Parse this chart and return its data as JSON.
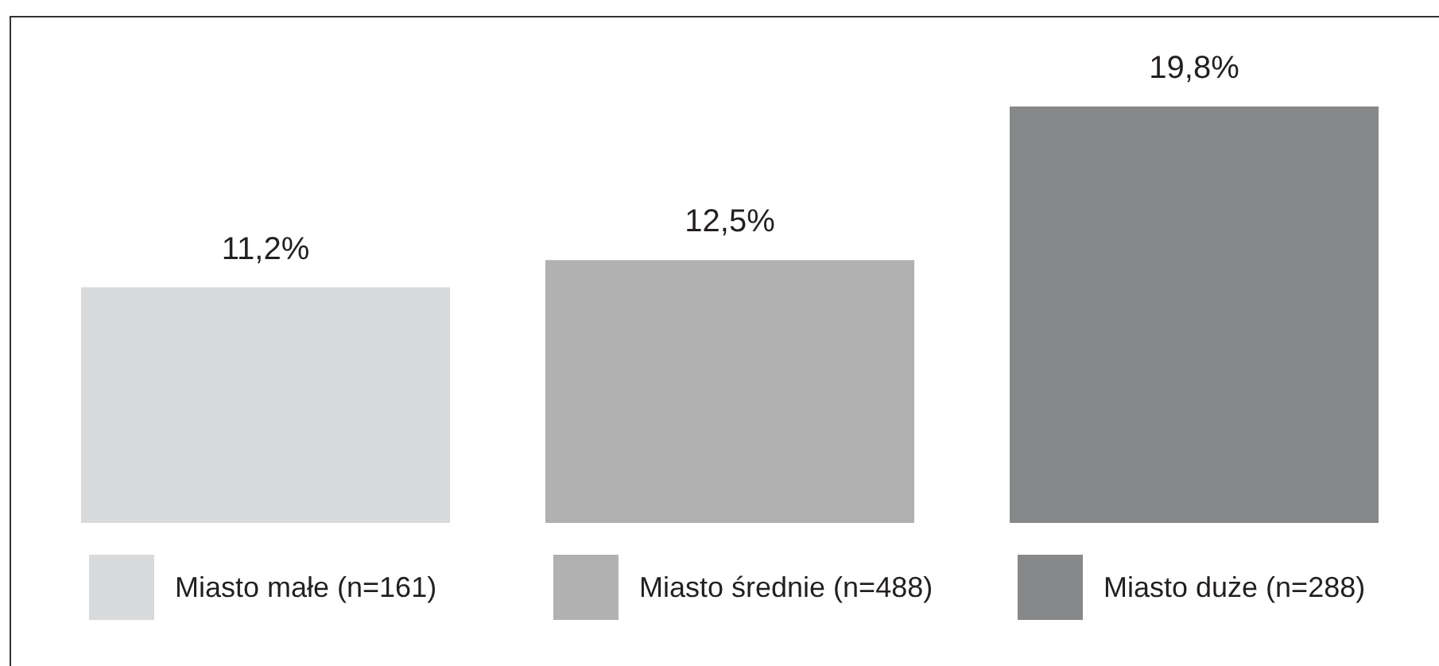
{
  "chart_data": {
    "type": "bar",
    "categories": [
      null
    ],
    "series": [
      {
        "name": "Miasto małe (n=161)",
        "color": "#d9dadb",
        "values": [
          11.2
        ],
        "value_labels": [
          "11,2%"
        ]
      },
      {
        "name": "Miasto średnie (n=488)",
        "color": "#b1b1b2",
        "values": [
          12.5
        ],
        "value_labels": [
          "12,5%"
        ]
      },
      {
        "name": "Miasto duże (n=288)",
        "color": "#87888a",
        "values": [
          19.8
        ],
        "value_labels": [
          "19,8%"
        ]
      }
    ],
    "legend": "bottom",
    "tick_labels": false
  }
}
